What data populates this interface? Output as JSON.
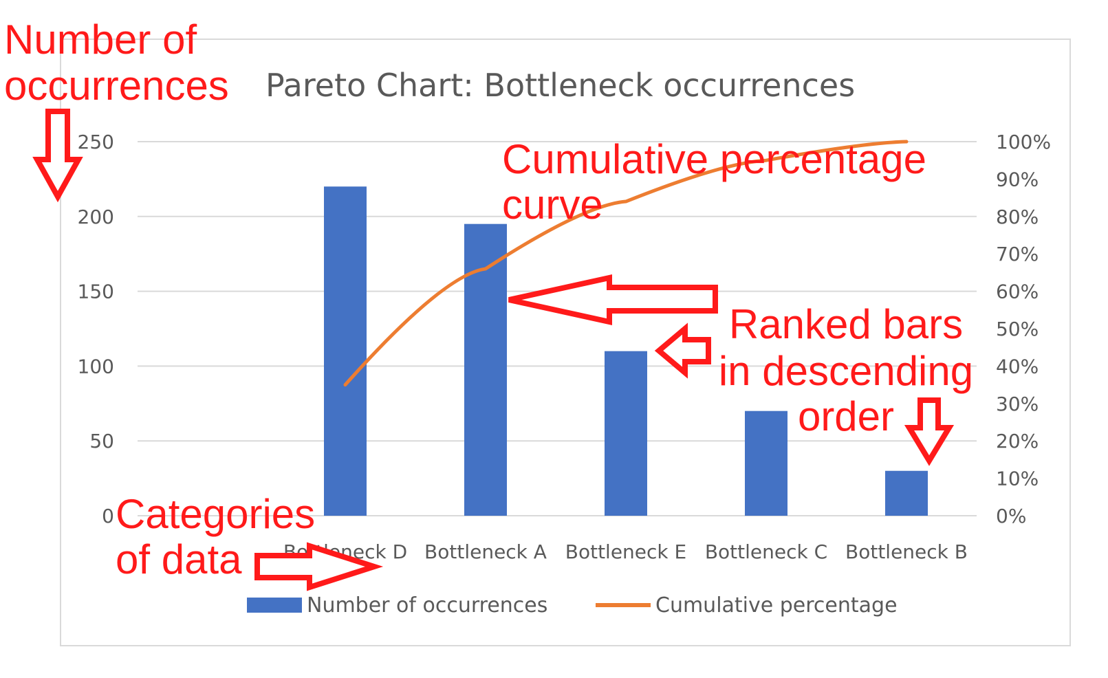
{
  "chart_data": {
    "type": "bar",
    "title": "Pareto Chart: Bottleneck occurrences",
    "categories": [
      "Bottleneck D",
      "Bottleneck A",
      "Bottleneck E",
      "Bottleneck C",
      "Bottleneck B"
    ],
    "series": [
      {
        "name": "Number of occurrences",
        "type": "bar",
        "axis": "left",
        "color": "#4472c4",
        "values": [
          220,
          195,
          110,
          70,
          30
        ]
      },
      {
        "name": "Cumulative percentage",
        "type": "line",
        "axis": "right",
        "color": "#ed7d31",
        "values": [
          35,
          66,
          84,
          95,
          100
        ]
      }
    ],
    "y_left": {
      "ylim": [
        0,
        250
      ],
      "ticks": [
        "0",
        "50",
        "100",
        "150",
        "200",
        "250"
      ]
    },
    "y_right": {
      "ylim": [
        0,
        100
      ],
      "ticks": [
        "0%",
        "10%",
        "20%",
        "30%",
        "40%",
        "50%",
        "60%",
        "70%",
        "80%",
        "90%",
        "100%"
      ]
    },
    "grid": true,
    "legend": "bottom",
    "annotations": {
      "y_axis_note": [
        "Number of",
        "occurrences"
      ],
      "curve_note": [
        "Cumulative percentage",
        "curve"
      ],
      "bars_note": [
        "Ranked bars",
        "in descending",
        "order"
      ],
      "categories_note": [
        "Categories",
        "of data"
      ],
      "color": "#ff1a1a"
    }
  }
}
